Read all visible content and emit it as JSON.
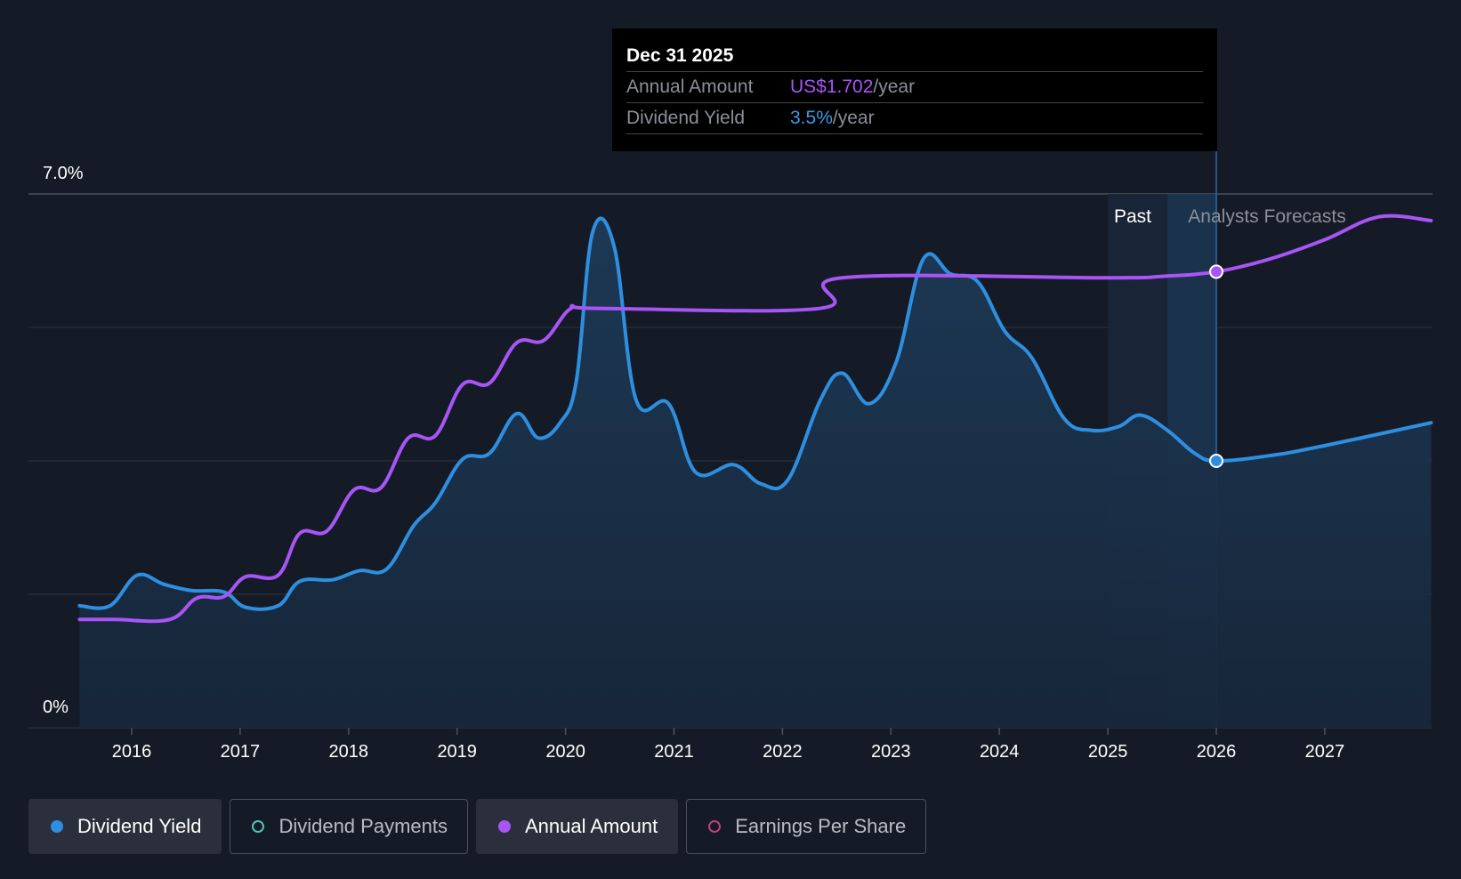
{
  "chart_data": {
    "type": "line",
    "y_axis": {
      "top_label": "7.0%",
      "bottom_label": "0%",
      "ylim": [
        0,
        7.0
      ]
    },
    "x_axis": {
      "ticks": [
        "2016",
        "2017",
        "2018",
        "2019",
        "2020",
        "2021",
        "2022",
        "2023",
        "2024",
        "2025",
        "2026",
        "2027"
      ],
      "xlim": [
        2015.5,
        2027.98
      ]
    },
    "regions": {
      "past_label": "Past",
      "forecast_label": "Analysts Forecasts"
    },
    "series": [
      {
        "name": "Dividend Yield",
        "color": "#2e8fe0",
        "area": true,
        "points": [
          [
            2015.52,
            1.6
          ],
          [
            2015.8,
            1.6
          ],
          [
            2016.05,
            2.0
          ],
          [
            2016.3,
            1.88
          ],
          [
            2016.55,
            1.8
          ],
          [
            2016.85,
            1.78
          ],
          [
            2017.05,
            1.58
          ],
          [
            2017.35,
            1.6
          ],
          [
            2017.55,
            1.92
          ],
          [
            2017.85,
            1.94
          ],
          [
            2018.1,
            2.06
          ],
          [
            2018.35,
            2.08
          ],
          [
            2018.6,
            2.65
          ],
          [
            2018.8,
            2.95
          ],
          [
            2019.05,
            3.52
          ],
          [
            2019.3,
            3.6
          ],
          [
            2019.55,
            4.12
          ],
          [
            2019.75,
            3.8
          ],
          [
            2019.95,
            4.0
          ],
          [
            2020.1,
            4.55
          ],
          [
            2020.25,
            6.5
          ],
          [
            2020.45,
            6.3
          ],
          [
            2020.65,
            4.3
          ],
          [
            2020.95,
            4.25
          ],
          [
            2021.2,
            3.35
          ],
          [
            2021.55,
            3.45
          ],
          [
            2021.8,
            3.2
          ],
          [
            2022.05,
            3.25
          ],
          [
            2022.35,
            4.3
          ],
          [
            2022.55,
            4.65
          ],
          [
            2022.8,
            4.25
          ],
          [
            2023.05,
            4.8
          ],
          [
            2023.3,
            6.15
          ],
          [
            2023.55,
            5.95
          ],
          [
            2023.8,
            5.85
          ],
          [
            2024.05,
            5.2
          ],
          [
            2024.3,
            4.85
          ],
          [
            2024.6,
            4.05
          ],
          [
            2024.85,
            3.9
          ],
          [
            2025.1,
            3.95
          ],
          [
            2025.3,
            4.1
          ],
          [
            2025.55,
            3.9
          ],
          [
            2025.8,
            3.6
          ],
          [
            2026.0,
            3.5
          ],
          [
            2026.5,
            3.57
          ],
          [
            2027.0,
            3.7
          ],
          [
            2027.98,
            4.0
          ]
        ]
      },
      {
        "name": "Annual Amount",
        "color": "#a855f7",
        "area": false,
        "points": [
          [
            2015.52,
            1.42
          ],
          [
            2015.85,
            1.42
          ],
          [
            2016.35,
            1.42
          ],
          [
            2016.6,
            1.7
          ],
          [
            2016.85,
            1.72
          ],
          [
            2017.05,
            1.98
          ],
          [
            2017.35,
            2.0
          ],
          [
            2017.55,
            2.55
          ],
          [
            2017.8,
            2.58
          ],
          [
            2018.05,
            3.12
          ],
          [
            2018.3,
            3.15
          ],
          [
            2018.55,
            3.8
          ],
          [
            2018.8,
            3.83
          ],
          [
            2019.05,
            4.5
          ],
          [
            2019.3,
            4.52
          ],
          [
            2019.55,
            5.05
          ],
          [
            2019.8,
            5.08
          ],
          [
            2020.05,
            5.5
          ],
          [
            2020.3,
            5.5
          ],
          [
            2022.35,
            5.5
          ],
          [
            2022.55,
            5.9
          ],
          [
            2025.0,
            5.9
          ],
          [
            2025.5,
            5.92
          ],
          [
            2026.0,
            5.98
          ],
          [
            2026.5,
            6.15
          ],
          [
            2027.0,
            6.4
          ],
          [
            2027.5,
            6.7
          ],
          [
            2027.98,
            6.65
          ]
        ]
      }
    ],
    "highlight_point": {
      "x": 2026.0
    },
    "tooltip": {
      "date": "Dec 31 2025",
      "rows": [
        {
          "label": "Annual Amount",
          "value": "US$1.702",
          "unit": "/year",
          "color": "#a855f7"
        },
        {
          "label": "Dividend Yield",
          "value": "3.5%",
          "unit": "/year",
          "color": "#3b9be6"
        }
      ]
    },
    "legend": [
      {
        "label": "Dividend Yield",
        "color": "#2e8fe0",
        "active": true,
        "filled": true
      },
      {
        "label": "Dividend Payments",
        "color": "#4fc3b8",
        "active": false,
        "filled": false
      },
      {
        "label": "Annual Amount",
        "color": "#a855f7",
        "active": true,
        "filled": true
      },
      {
        "label": "Earnings Per Share",
        "color": "#c0407a",
        "active": false,
        "filled": false
      }
    ]
  }
}
